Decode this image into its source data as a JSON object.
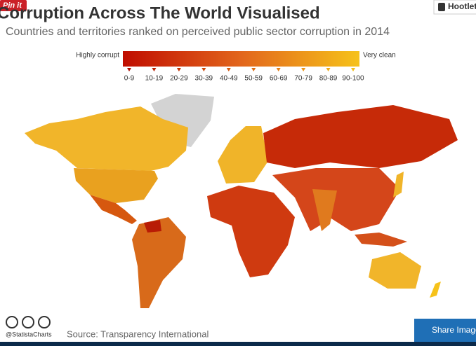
{
  "overlay": {
    "pin_it": "Pin it",
    "hootlet": "Hootlet",
    "share": "Share Image"
  },
  "header": {
    "title": "Corruption Across The World Visualised",
    "subtitle": "Countries and territories ranked on perceived public sector corruption in 2014"
  },
  "legend": {
    "low_label": "Highly corrupt",
    "high_label": "Very clean",
    "ranges": [
      "0-9",
      "10-19",
      "20-29",
      "30-39",
      "40-49",
      "50-59",
      "60-69",
      "70-79",
      "80-89",
      "90-100"
    ]
  },
  "footer": {
    "handle": "@StatistaCharts",
    "source": "Source: Transparency International"
  }
}
